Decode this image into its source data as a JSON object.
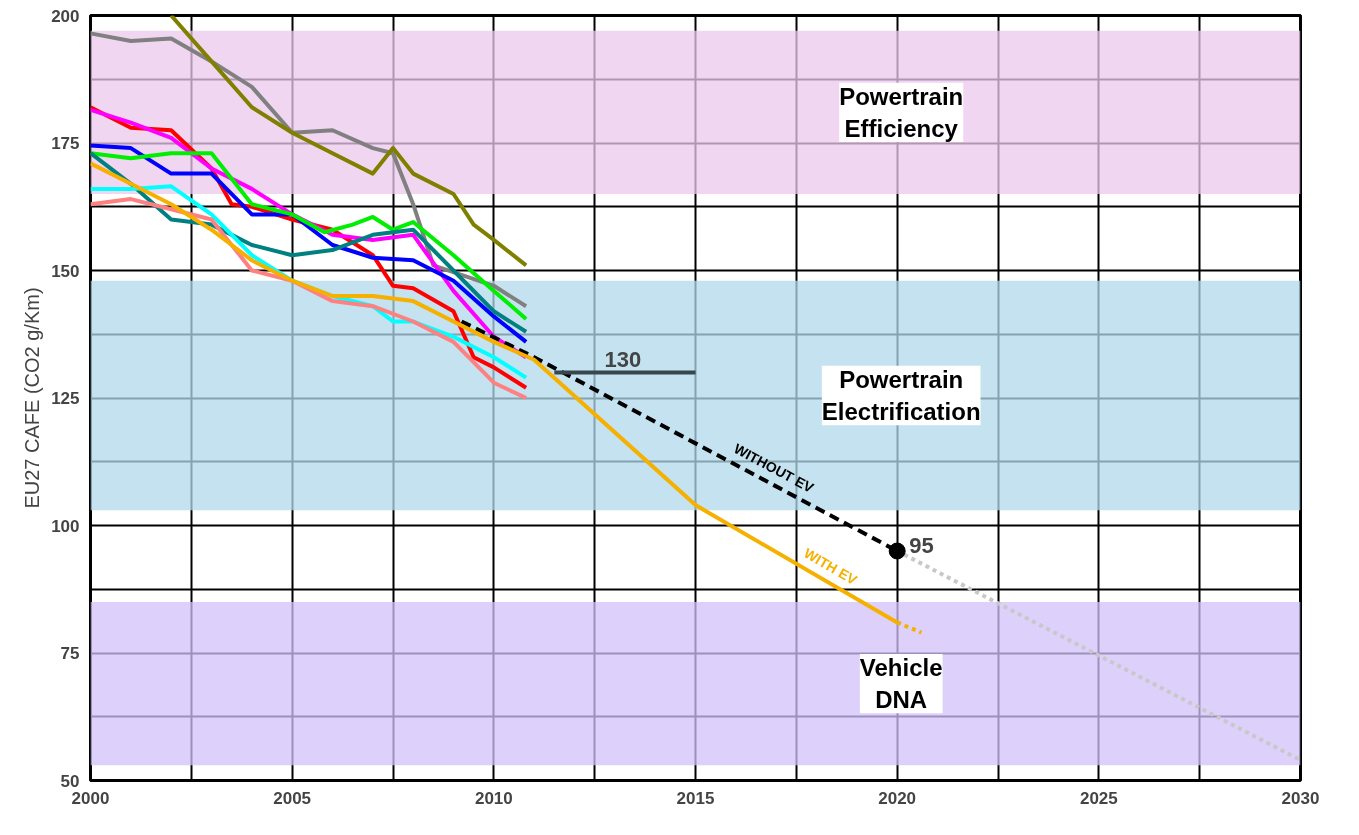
{
  "chart_data": {
    "type": "line",
    "ylabel": "EU27 CAFE (CO2 g/Km)",
    "xlim": [
      2000,
      2030
    ],
    "ylim": [
      50,
      200
    ],
    "xticks": [
      2000,
      {
        "value": 2002.5,
        "label": null
      },
      2005,
      {
        "value": 2007.5,
        "label": null
      },
      2010,
      {
        "value": 2012.5,
        "label": null
      },
      2015,
      {
        "value": 2017.5,
        "label": null
      },
      2020,
      {
        "value": 2022.5,
        "label": null
      },
      2025,
      {
        "value": 2027.5,
        "label": null
      },
      2030
    ],
    "yticks": [
      50,
      {
        "value": 62.5,
        "label": null
      },
      75,
      {
        "value": 87.5,
        "label": null
      },
      100,
      {
        "value": 112.5,
        "label": null
      },
      125,
      {
        "value": 137.5,
        "label": null
      },
      150,
      {
        "value": 162.5,
        "label": null
      },
      175,
      {
        "value": 187.5,
        "label": null
      },
      200
    ],
    "grid": true,
    "marker": "none",
    "line_style": "solid",
    "bands": [
      {
        "axis": "y",
        "from": 165,
        "to": 197,
        "label": "Powertrain\nEfficiency",
        "color": "#ecc8ee"
      },
      {
        "axis": "y",
        "from": 103,
        "to": 148,
        "label": "Powertrain\nElectrification",
        "color": "#b0d8ea"
      },
      {
        "axis": "y",
        "from": 53,
        "to": 85,
        "label": "Vehicle\nDNA",
        "color": "#d2c2fa"
      }
    ],
    "annotations": [
      {
        "text": "130",
        "x": 2013.2,
        "y": 130
      },
      {
        "text": "95",
        "x": 2020,
        "y": 95
      }
    ],
    "series": [
      {
        "color": "#808080",
        "x": [
          2000,
          2001,
          2002,
          2003,
          2004,
          2005,
          2006,
          2007,
          2007.5,
          2008,
          2008.5,
          2010,
          2010.8
        ],
        "values": [
          196.5,
          195,
          195.5,
          191,
          186,
          177,
          177.5,
          174,
          173,
          163,
          151,
          147,
          143
        ]
      },
      {
        "color": "#808000",
        "x": [
          2002,
          2003,
          2004,
          2005,
          2006,
          2007,
          2007.5,
          2008,
          2009,
          2009.5,
          2010,
          2010.8
        ],
        "values": [
          200,
          191,
          182,
          177,
          173,
          169,
          174,
          169,
          165,
          159,
          156,
          151
        ]
      },
      {
        "color": "#ff0000",
        "x": [
          2000,
          2001,
          2002,
          2003,
          2003.5,
          2004,
          2005,
          2006,
          2007,
          2007.5,
          2008,
          2009,
          2009.5,
          2010,
          2010.8
        ],
        "values": [
          182,
          178,
          177.5,
          170,
          163,
          162.5,
          160,
          158,
          153,
          147,
          146.5,
          142,
          133,
          131,
          127
        ]
      },
      {
        "color": "#ff00ff",
        "x": [
          2000,
          2001,
          2002,
          2003,
          2004,
          2005,
          2006,
          2007,
          2008,
          2009,
          2010,
          2010.8
        ],
        "values": [
          181.5,
          179,
          176,
          170,
          166,
          161,
          157,
          156,
          157,
          146,
          137,
          133
        ]
      },
      {
        "color": "#0000ff",
        "x": [
          2000,
          2001,
          2002,
          2003,
          2004,
          2005,
          2006,
          2007,
          2008,
          2009,
          2010,
          2010.8
        ],
        "values": [
          174.5,
          174,
          169,
          169,
          161,
          161,
          155,
          152.5,
          152,
          148,
          141,
          136
        ]
      },
      {
        "color": "#00ee00",
        "x": [
          2000,
          2001,
          2002,
          2003,
          2004,
          2005,
          2005.8,
          2006.5,
          2007,
          2007.5,
          2008,
          2009,
          2010,
          2010.8
        ],
        "values": [
          173,
          172,
          173,
          173,
          163,
          161,
          157.5,
          159,
          160.5,
          158,
          159.5,
          153,
          146,
          140.5
        ]
      },
      {
        "color": "#008080",
        "x": [
          2000,
          2001,
          2002,
          2003,
          2004,
          2005,
          2006,
          2007,
          2008,
          2009,
          2010,
          2010.8
        ],
        "values": [
          173,
          167,
          160,
          159,
          155,
          153,
          154,
          157,
          158,
          150,
          142,
          138
        ]
      },
      {
        "color": "#00ffff",
        "x": [
          2000,
          2001,
          2002,
          2003,
          2004,
          2005,
          2006,
          2007,
          2007.5,
          2008,
          2009,
          2010,
          2010.8
        ],
        "values": [
          166,
          166,
          166.5,
          161,
          153,
          148,
          145,
          143,
          140,
          140,
          137,
          133,
          129
        ]
      },
      {
        "color": "#ff8080",
        "x": [
          2000,
          2001,
          2002,
          2003,
          2004,
          2005,
          2006,
          2007,
          2008,
          2009,
          2010,
          2010.8
        ],
        "values": [
          163,
          164,
          162,
          160,
          150,
          148,
          144,
          143,
          140,
          136,
          128,
          125
        ]
      },
      {
        "name": "WITHOUT EV",
        "color": "#000000",
        "line_style": "dashed",
        "x": [
          2009.2,
          2011,
          2020
        ],
        "values": [
          140,
          133,
          95
        ]
      },
      {
        "name": "WITH EV",
        "color": "#f5b000",
        "x": [
          2000,
          2001,
          2002,
          2003,
          2004,
          2005,
          2006,
          2007,
          2008,
          2009,
          2010,
          2011,
          2015,
          2020
        ],
        "values": [
          171,
          167,
          163,
          158,
          152,
          148,
          145,
          145,
          144,
          140,
          136,
          132.5,
          104,
          81
        ]
      },
      {
        "color": "#f5b000",
        "line_style": "dotted",
        "x": [
          2020,
          2020.6
        ],
        "values": [
          81,
          79
        ]
      },
      {
        "color": "#c8c8c8",
        "line_style": "dotted",
        "x": [
          2020,
          2030
        ],
        "values": [
          95,
          54
        ]
      },
      {
        "color": "#37474f",
        "x": [
          2011.5,
          2015
        ],
        "values": [
          130,
          130
        ]
      },
      {
        "type": "scatter",
        "marker": "circle",
        "color": "#000000",
        "x": [
          2020
        ],
        "values": [
          95
        ]
      }
    ]
  }
}
